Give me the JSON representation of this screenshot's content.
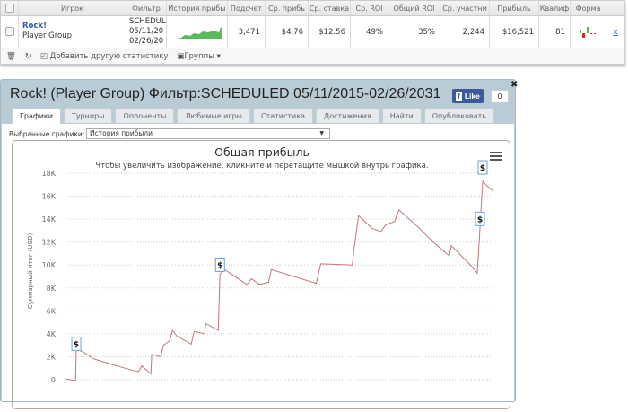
{
  "table": {
    "headers": [
      "Игрок",
      "Фильтр",
      "История прибы",
      "Подсчет",
      "Ср. прибь",
      "Ср. ставка",
      "Ср. ROI",
      "Общий ROI",
      "Ср. участни",
      "Прибыль",
      "Квалиф",
      "Форма"
    ],
    "row": {
      "player": "Rock!",
      "group": "Player Group",
      "filter": [
        "SCHEDUL",
        "05/11/20",
        "02/26/20"
      ],
      "count": "3,471",
      "avg_profit": "$4.76",
      "avg_stake": "$12.56",
      "avg_roi": "49%",
      "total_roi": "35%",
      "avg_entrants": "2,244",
      "profit": "$16,521",
      "qualif": "81",
      "remove": "x"
    },
    "toolbar": {
      "add_stat": "Добавить другую статистику",
      "groups": "Группы"
    }
  },
  "dialog": {
    "title": "Rock! (Player Group) Фильтр:SCHEDULED 05/11/2015-02/26/2031",
    "like": "Like",
    "like_count": "0",
    "tabs": [
      "Графики",
      "Турниры",
      "Оппоненты",
      "Любимые игры",
      "Статистика",
      "Достижения",
      "Найти",
      "Опубликовать"
    ],
    "active_tab": 0,
    "selector_label": "Выбранные графики:",
    "selector_value": "История прибыли"
  },
  "chart_data": {
    "type": "line",
    "title": "Общая прибыль",
    "subtitle": "Чтобы увеличить изображение, кликните и перетащите мышкой внутрь графика.",
    "ylabel": "Суммарный итог (USD)",
    "ylim": [
      0,
      18000
    ],
    "yticks": [
      "0",
      "2K",
      "4K",
      "6K",
      "8K",
      "10K",
      "12K",
      "14K",
      "16K",
      "18K"
    ],
    "grid": true,
    "line_color": "#c0787a",
    "x": [
      0,
      88,
      95,
      168,
      241,
      365,
      489,
      598,
      627,
      700,
      707,
      780,
      802,
      853,
      875,
      911,
      1028,
      1050,
      1137,
      1145,
      1247,
      1261,
      1298,
      1480,
      1517,
      1583,
      1655,
      1677,
      2042,
      2078,
      2334,
      2348,
      2385,
      2494,
      2567,
      2604,
      2677,
      2713,
      2859,
      2990,
      3122,
      3137,
      3283,
      3348,
      3370,
      3392,
      3428,
      3472
    ],
    "values": [
      100,
      -100,
      2700,
      2300,
      1800,
      1400,
      1000,
      700,
      1200,
      500,
      2200,
      2000,
      3000,
      3400,
      4300,
      3800,
      3100,
      4200,
      4000,
      4900,
      4300,
      9200,
      9600,
      8300,
      8800,
      8300,
      8500,
      9600,
      8400,
      10100,
      10000,
      11400,
      14300,
      13200,
      12900,
      13500,
      13800,
      14800,
      13400,
      12000,
      10800,
      11700,
      10100,
      9300,
      13200,
      17300,
      16900,
      16500
    ],
    "flags": [
      {
        "x": 95,
        "label": "$"
      },
      {
        "x": 1261,
        "label": "$"
      },
      {
        "x": 3370,
        "label": "$"
      },
      {
        "x": 3392,
        "label": "$"
      }
    ]
  },
  "colors": {
    "link": "#2a5fa8",
    "sparkline": "#5cb85c",
    "dialog_header": "#b9ccd5",
    "facebook": "#3b5998"
  }
}
